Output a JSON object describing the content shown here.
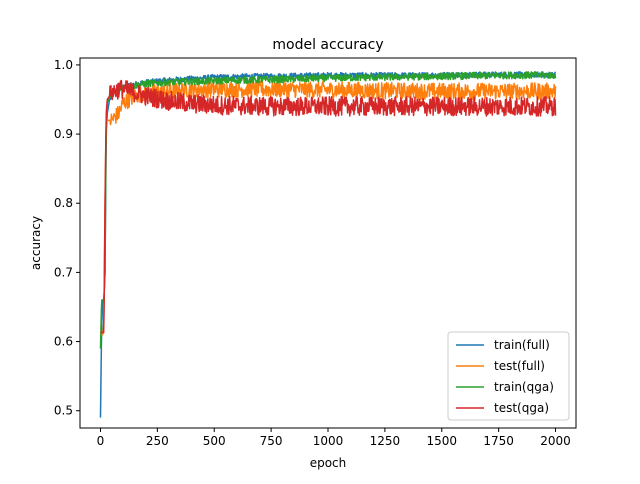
{
  "chart_data": {
    "type": "line",
    "title": "model accuracy",
    "xlabel": "epoch",
    "ylabel": "accuracy",
    "xlim": [
      -90,
      2090
    ],
    "ylim": [
      0.475,
      1.01
    ],
    "xticks": [
      0,
      250,
      500,
      750,
      1000,
      1250,
      1500,
      1750,
      2000
    ],
    "yticks": [
      0.5,
      0.6,
      0.7,
      0.8,
      0.9,
      1.0
    ],
    "ytick_labels": [
      "0.5",
      "0.6",
      "0.7",
      "0.8",
      "0.9",
      "1.0"
    ],
    "grid": false,
    "legend": "lower-right",
    "series": [
      {
        "name": "train(full)",
        "color": "#1f77b4",
        "noise": 0.004,
        "x": [
          0,
          5,
          10,
          15,
          20,
          25,
          30,
          40,
          50,
          60,
          80,
          100,
          150,
          200,
          300,
          400,
          500,
          600,
          800,
          1000,
          1200,
          1400,
          1600,
          1800,
          2000
        ],
        "y": [
          0.49,
          0.62,
          0.66,
          0.66,
          0.7,
          0.9,
          0.93,
          0.95,
          0.955,
          0.96,
          0.965,
          0.968,
          0.972,
          0.975,
          0.978,
          0.98,
          0.982,
          0.983,
          0.984,
          0.985,
          0.985,
          0.985,
          0.986,
          0.986,
          0.986
        ]
      },
      {
        "name": "test(full)",
        "color": "#ff7f0e",
        "noise": 0.012,
        "x": [
          0,
          5,
          10,
          15,
          20,
          25,
          30,
          50,
          80,
          100,
          150,
          200,
          300,
          400,
          500,
          600,
          800,
          1000,
          1200,
          1400,
          1600,
          1800,
          2000
        ],
        "y": [
          0.61,
          0.61,
          0.61,
          0.63,
          0.8,
          0.92,
          0.92,
          0.92,
          0.93,
          0.945,
          0.955,
          0.96,
          0.962,
          0.965,
          0.965,
          0.965,
          0.965,
          0.964,
          0.963,
          0.962,
          0.962,
          0.962,
          0.962
        ]
      },
      {
        "name": "train(qga)",
        "color": "#2ca02c",
        "noise": 0.005,
        "x": [
          0,
          5,
          10,
          15,
          20,
          25,
          30,
          40,
          50,
          60,
          80,
          100,
          150,
          200,
          300,
          400,
          500,
          600,
          800,
          1000,
          1200,
          1400,
          1600,
          1800,
          2000
        ],
        "y": [
          0.59,
          0.66,
          0.66,
          0.66,
          0.7,
          0.92,
          0.945,
          0.955,
          0.96,
          0.962,
          0.965,
          0.968,
          0.97,
          0.973,
          0.975,
          0.976,
          0.977,
          0.978,
          0.979,
          0.981,
          0.982,
          0.983,
          0.984,
          0.985,
          0.985
        ]
      },
      {
        "name": "test(qga)",
        "color": "#d62728",
        "noise": 0.014,
        "x": [
          0,
          5,
          10,
          15,
          20,
          25,
          30,
          50,
          80,
          100,
          150,
          200,
          300,
          400,
          500,
          600,
          800,
          1000,
          1200,
          1400,
          1600,
          1800,
          2000
        ],
        "y": [
          0.613,
          0.613,
          0.613,
          0.613,
          0.8,
          0.93,
          0.95,
          0.96,
          0.965,
          0.965,
          0.96,
          0.955,
          0.948,
          0.944,
          0.942,
          0.941,
          0.94,
          0.94,
          0.94,
          0.94,
          0.94,
          0.94,
          0.94
        ]
      }
    ]
  }
}
